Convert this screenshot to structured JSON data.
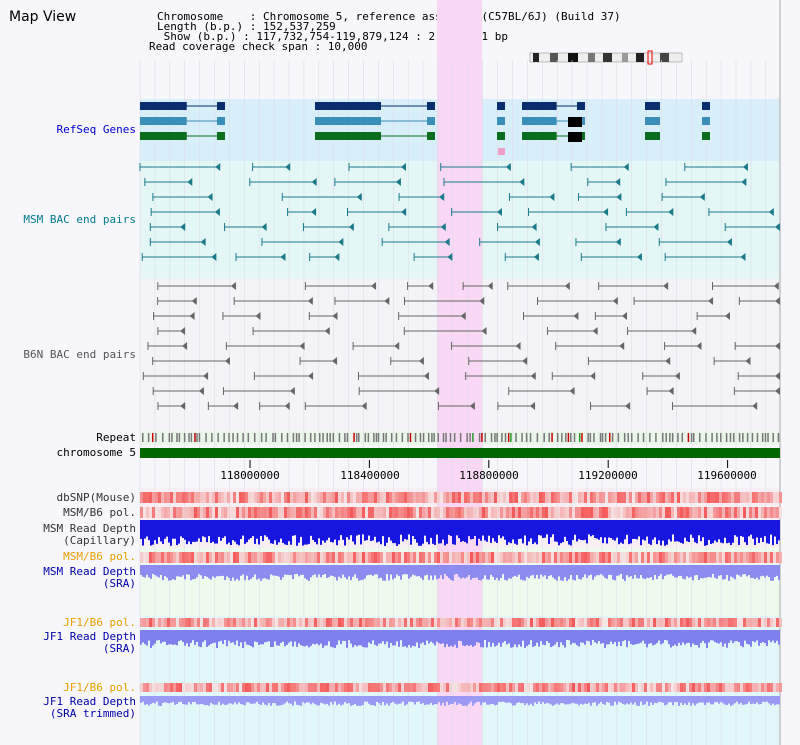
{
  "page_title": "Map View",
  "info": {
    "line1": "Chromosome    : Chromosome 5, reference assembly (C57BL/6J) (Build 37)",
    "line2": "Length (b.p.) : 152,537,259",
    "line3": " Show (b.p.) : 117,732,754-119,879,124 : 2,146,371 bp",
    "line4": "Read coverage check span : 10,000"
  },
  "tracks": {
    "refseq": "RefSeq Genes",
    "msm_bac": "MSM BAC end pairs",
    "b6n_bac": "B6N BAC end pairs",
    "repeat": "Repeat",
    "chromosome": "chromosome 5",
    "dbsnp": "dbSNP(Mouse)",
    "msm_b6_pol_1": "MSM/B6 pol.",
    "msm_read_depth_cap": "MSM Read Depth\n(Capillary)",
    "msm_b6_pol_2": "MSM/B6 pol.",
    "msm_read_depth_sra": "MSM Read Depth\n(SRA)",
    "jf1_b6_pol_1": "JF1/B6 pol.",
    "jf1_read_depth_sra": "JF1 Read Depth\n(SRA)",
    "jf1_b6_pol_2": "JF1/B6 pol.",
    "jf1_read_depth_trim": "JF1 Read Depth\n(SRA trimmed)"
  },
  "axis_ticks": [
    "118000000",
    "118400000",
    "118800000",
    "119200000",
    "119600000"
  ],
  "colors": {
    "refseq_label": "#0000cc",
    "msm_label": "#007a8a",
    "b6n_label": "#555555",
    "pol_orange": "#e6a000",
    "depth_blue": "#0000aa",
    "highlight": "#f8d8f4"
  }
}
